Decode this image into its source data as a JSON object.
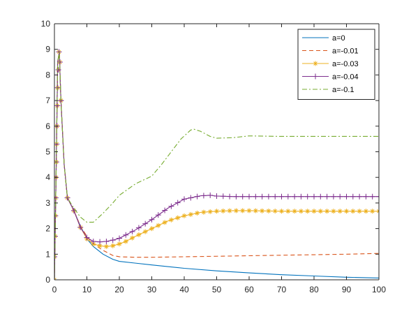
{
  "chart_data": {
    "type": "line",
    "title": "",
    "xlabel": "",
    "ylabel": "",
    "xlim": [
      0,
      100
    ],
    "ylim": [
      0,
      10
    ],
    "xticks": [
      0,
      10,
      20,
      30,
      40,
      50,
      60,
      70,
      80,
      90,
      100
    ],
    "yticks": [
      0,
      1,
      2,
      3,
      4,
      5,
      6,
      7,
      8,
      9,
      10
    ],
    "grid": false,
    "legend_position": "top-right",
    "series": [
      {
        "name": "a=0",
        "color": "#0072BD",
        "line_style": "solid",
        "marker": "none",
        "x": [
          0,
          0.5,
          1,
          1.5,
          2,
          3,
          4,
          6,
          8,
          10,
          12,
          15,
          18,
          20,
          25,
          30,
          40,
          50,
          60,
          70,
          80,
          90,
          100
        ],
        "y": [
          0,
          4.0,
          8.5,
          8.9,
          7.0,
          4.5,
          3.2,
          2.7,
          2.1,
          1.6,
          1.3,
          1.0,
          0.8,
          0.72,
          0.65,
          0.58,
          0.45,
          0.35,
          0.27,
          0.2,
          0.15,
          0.1,
          0.07
        ]
      },
      {
        "name": "a=-0.01",
        "color": "#D95319",
        "line_style": "dashed",
        "marker": "none",
        "x": [
          0,
          0.5,
          1,
          1.5,
          2,
          3,
          4,
          6,
          8,
          10,
          12,
          15,
          18,
          20,
          25,
          30,
          40,
          50,
          60,
          70,
          80,
          90,
          100
        ],
        "y": [
          0,
          4.0,
          8.5,
          8.9,
          7.0,
          4.5,
          3.2,
          2.7,
          2.1,
          1.7,
          1.4,
          1.15,
          0.95,
          0.9,
          0.88,
          0.88,
          0.9,
          0.92,
          0.94,
          0.96,
          0.98,
          1.0,
          1.03
        ]
      },
      {
        "name": "a=-0.03",
        "color": "#EDB120",
        "line_style": "solid",
        "marker": "asterisk",
        "x": [
          0,
          0.5,
          1,
          1.5,
          2,
          3,
          4,
          6,
          8,
          10,
          12,
          14,
          16,
          18,
          20,
          22,
          25,
          30,
          35,
          40,
          45,
          50,
          55,
          60,
          70,
          80,
          90,
          100
        ],
        "y": [
          0,
          4.0,
          8.5,
          8.9,
          7.0,
          4.5,
          3.2,
          2.7,
          2.05,
          1.6,
          1.4,
          1.33,
          1.3,
          1.33,
          1.4,
          1.5,
          1.7,
          2.0,
          2.3,
          2.5,
          2.63,
          2.68,
          2.7,
          2.7,
          2.68,
          2.68,
          2.68,
          2.68
        ]
      },
      {
        "name": "a=-0.04",
        "color": "#7E2F8E",
        "line_style": "solid",
        "marker": "plus",
        "x": [
          0,
          0.5,
          1,
          1.5,
          2,
          3,
          4,
          6,
          8,
          10,
          12,
          14,
          16,
          18,
          20,
          22,
          25,
          30,
          35,
          40,
          45,
          48,
          50,
          55,
          60,
          70,
          80,
          90,
          100
        ],
        "y": [
          0,
          4.0,
          8.5,
          8.9,
          7.0,
          4.5,
          3.2,
          2.7,
          2.05,
          1.65,
          1.5,
          1.48,
          1.5,
          1.55,
          1.62,
          1.75,
          1.95,
          2.35,
          2.8,
          3.15,
          3.28,
          3.3,
          3.27,
          3.25,
          3.25,
          3.25,
          3.25,
          3.25,
          3.25
        ]
      },
      {
        "name": "a=-0.1",
        "color": "#77AC30",
        "line_style": "dashdot",
        "marker": "none",
        "x": [
          0,
          0.5,
          1,
          1.5,
          2,
          3,
          4,
          6,
          8,
          10,
          12,
          15,
          18,
          20,
          25,
          30,
          33,
          36,
          39,
          42,
          43,
          45,
          48,
          50,
          55,
          60,
          70,
          80,
          90,
          100
        ],
        "y": [
          0,
          4.0,
          8.5,
          8.9,
          7.0,
          4.5,
          3.2,
          2.8,
          2.45,
          2.25,
          2.25,
          2.6,
          3.0,
          3.3,
          3.75,
          4.05,
          4.5,
          5.0,
          5.5,
          5.85,
          5.88,
          5.8,
          5.6,
          5.53,
          5.55,
          5.62,
          5.6,
          5.6,
          5.6,
          5.6
        ]
      }
    ]
  }
}
